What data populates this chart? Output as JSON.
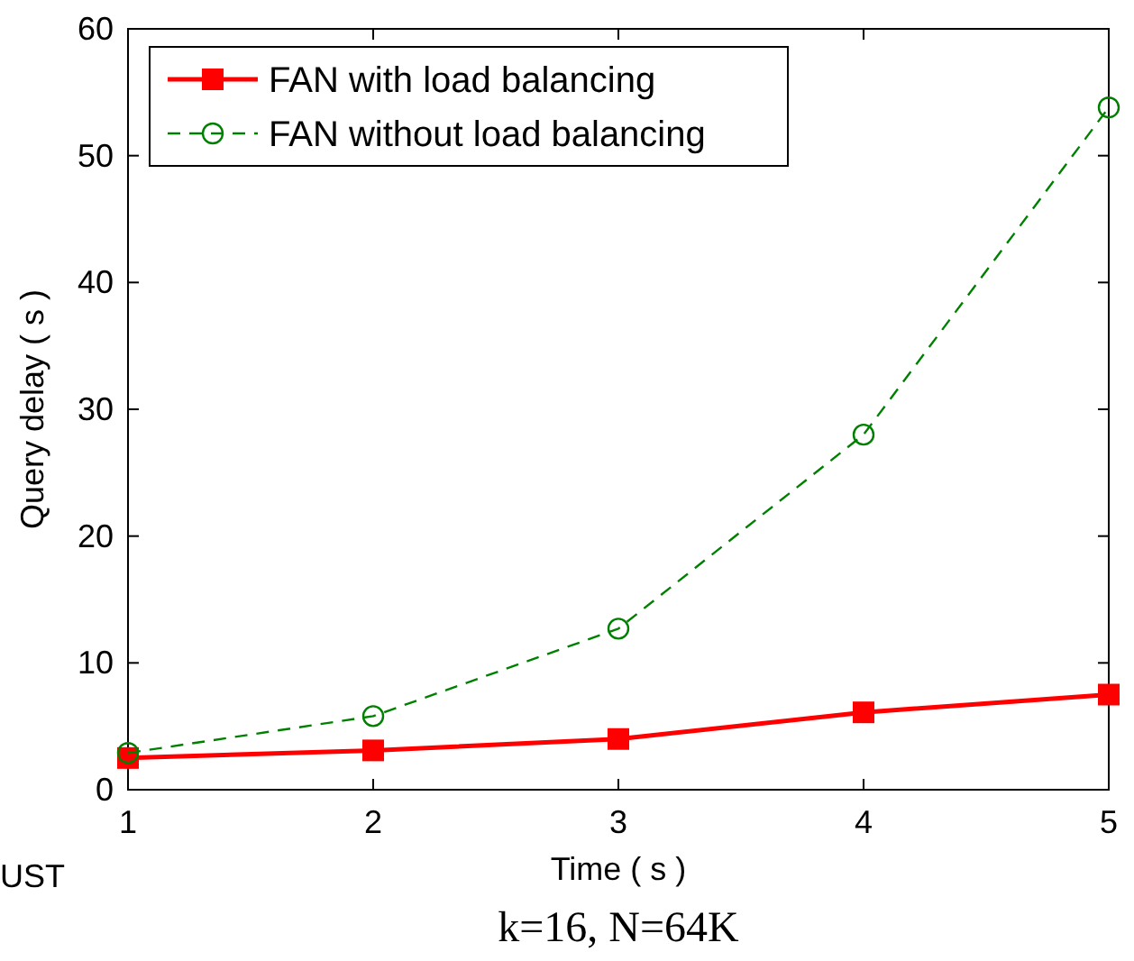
{
  "chart_data": {
    "type": "line",
    "xlabel": "Time ( s )",
    "ylabel": "Query delay ( s )",
    "x": [
      1,
      2,
      3,
      4,
      5
    ],
    "xlim": [
      1,
      5
    ],
    "xticks": [
      1,
      2,
      3,
      4,
      5
    ],
    "ylim": [
      0,
      60
    ],
    "yticks": [
      0,
      10,
      20,
      30,
      40,
      50,
      60
    ],
    "legend": "top left",
    "grid": false,
    "series": [
      {
        "name": "FAN with load balancing",
        "color": "#ff0000",
        "values": [
          2.5,
          3.1,
          4.0,
          6.1,
          7.5
        ],
        "marker": "square",
        "line_style": "solid"
      },
      {
        "name": "FAN without load balancing",
        "color": "#008000",
        "values": [
          2.9,
          5.8,
          12.7,
          28.0,
          53.8
        ],
        "marker": "circle",
        "line_style": "dashed"
      }
    ],
    "annotations": [
      "UST",
      "k=16, N=64K"
    ]
  }
}
